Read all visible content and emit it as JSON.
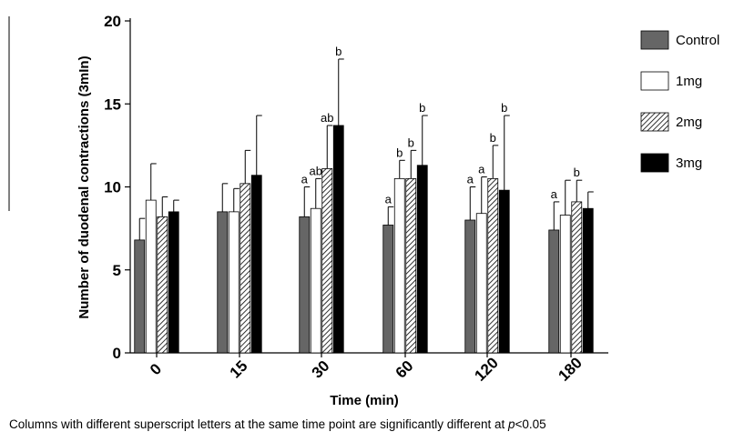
{
  "chart_data": {
    "type": "bar",
    "categories": [
      "0",
      "15",
      "30",
      "60",
      "120",
      "180"
    ],
    "xlabel": "Time (min)",
    "ylabel": "Number of duodenal contractions (3mIn)",
    "ylim": [
      0,
      20
    ],
    "yticks": [
      0,
      5,
      10,
      15,
      20
    ],
    "grid": false,
    "legend_position": "right",
    "series": [
      {
        "name": "Control",
        "pattern": "gray",
        "values": [
          6.8,
          8.5,
          8.2,
          7.7,
          8.0,
          7.4
        ],
        "errors": [
          1.3,
          1.7,
          1.8,
          1.1,
          2.0,
          1.7
        ],
        "sig": [
          "",
          "",
          "a",
          "a",
          "a",
          "a"
        ]
      },
      {
        "name": "1mg",
        "pattern": "white",
        "values": [
          9.2,
          8.5,
          8.7,
          10.5,
          8.4,
          8.3
        ],
        "errors": [
          2.2,
          1.4,
          1.8,
          1.1,
          2.2,
          2.1
        ],
        "sig": [
          "",
          "",
          "ab",
          "b",
          "a",
          ""
        ]
      },
      {
        "name": "2mg",
        "pattern": "hatched",
        "values": [
          8.2,
          10.2,
          11.1,
          10.5,
          10.5,
          9.1
        ],
        "errors": [
          1.2,
          2.0,
          2.6,
          1.7,
          2.0,
          1.3
        ],
        "sig": [
          "",
          "",
          "ab",
          "b",
          "b",
          "b"
        ]
      },
      {
        "name": "3mg",
        "pattern": "black",
        "values": [
          8.5,
          10.7,
          13.7,
          11.3,
          9.8,
          8.7
        ],
        "errors": [
          0.7,
          3.6,
          4.0,
          3.0,
          4.5,
          1.0
        ],
        "sig": [
          "",
          "",
          "b",
          "b",
          "b",
          ""
        ]
      }
    ]
  },
  "footnote": {
    "text": "Columns with different superscript letters at the same time point are significantly different   at ",
    "p_symbol": "p",
    "p_value": "<0.05"
  }
}
